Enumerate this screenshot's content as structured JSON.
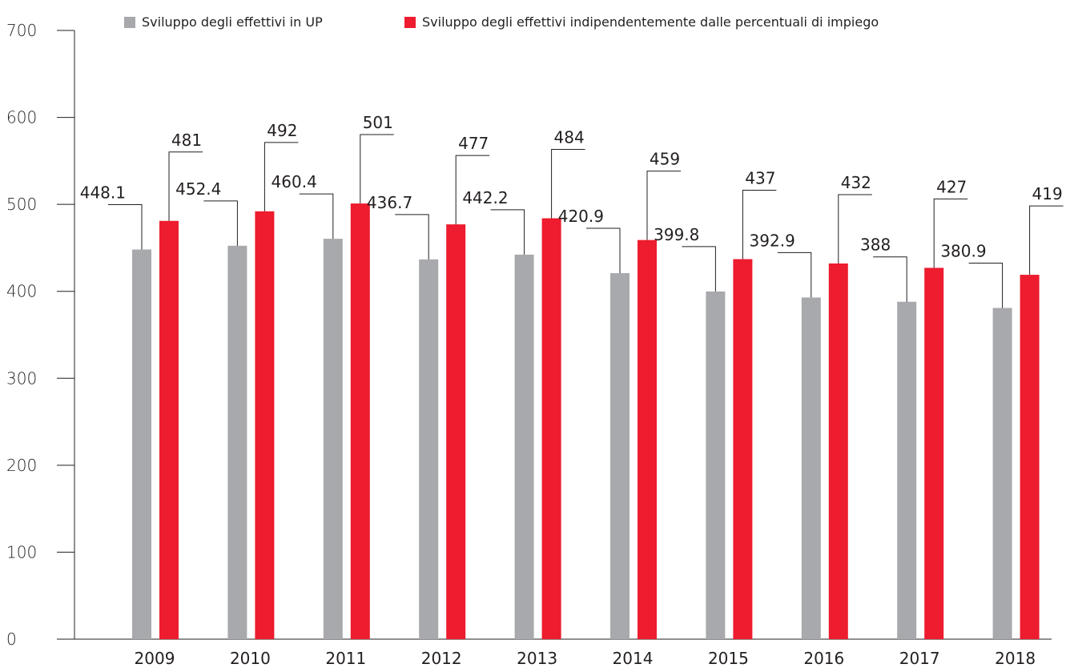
{
  "chart_data": {
    "type": "bar",
    "categories": [
      "2009",
      "2010",
      "2011",
      "2012",
      "2013",
      "2014",
      "2015",
      "2016",
      "2017",
      "2018"
    ],
    "series": [
      {
        "name": "Sviluppo degli effettivi in UP",
        "color": "#a7a9ac",
        "values": [
          448.1,
          452.4,
          460.4,
          436.7,
          442.2,
          420.9,
          399.8,
          392.9,
          388,
          380.9
        ],
        "labels": [
          "448.1",
          "452.4",
          "460.4",
          "436.7",
          "442.2",
          "420.9",
          "399.8",
          "392.9",
          "388",
          "380.9"
        ]
      },
      {
        "name": "Sviluppo degli effettivi indipendentemente dalle percentuali di impiego",
        "color": "#ed1c2e",
        "values": [
          481,
          492,
          501,
          477,
          484,
          459,
          437,
          432,
          427,
          419
        ],
        "labels": [
          "481",
          "492",
          "501",
          "477",
          "484",
          "459",
          "437",
          "432",
          "427",
          "419"
        ]
      }
    ],
    "yticks": [
      "0",
      "100",
      "200",
      "300",
      "400",
      "500",
      "600",
      "700"
    ],
    "ylim": [
      0,
      700
    ],
    "grid": false,
    "legend_position": "top"
  },
  "legend": {
    "gray_label": "Sviluppo degli effettivi in UP",
    "red_label": "Sviluppo degli effettivi indipendentemente dalle percentuali di impiego"
  }
}
